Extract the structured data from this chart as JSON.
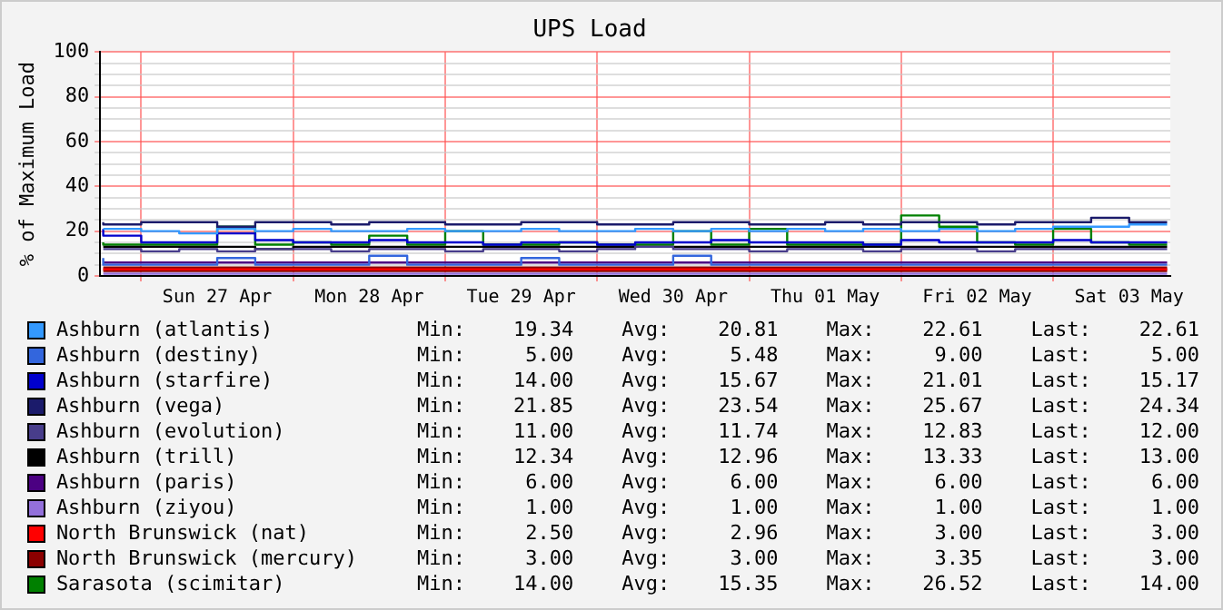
{
  "chart_data": {
    "type": "step",
    "title": "UPS Load",
    "ylabel": "% of Maximum Load",
    "x": [
      "--04-26T18:00",
      "--04-27T00:00",
      "--04-27T06:00",
      "--04-27T12:00",
      "--04-27T18:00",
      "--04-28T00:00",
      "--04-28T06:00",
      "--04-28T12:00",
      "--04-28T18:00",
      "--04-29T00:00",
      "--04-29T06:00",
      "--04-29T12:00",
      "--04-29T18:00",
      "--04-30T00:00",
      "--04-30T06:00",
      "--04-30T12:00",
      "--04-30T18:00",
      "--05-01T00:00",
      "--05-01T06:00",
      "--05-01T12:00",
      "--05-01T18:00",
      "--05-02T00:00",
      "--05-02T06:00",
      "--05-02T12:00",
      "--05-02T18:00",
      "--05-03T00:00",
      "--05-03T06:00",
      "--05-03T12:00",
      "--05-03T18:00"
    ],
    "xlim": [
      "--04-26T17:30",
      "--05-03T18:30"
    ],
    "xticks": [
      {
        "value": "--04-27T00:00",
        "label": null
      },
      {
        "value": "--04-27T12:00",
        "label": "Sun 27 Apr"
      },
      {
        "value": "--04-28T00:00",
        "label": null
      },
      {
        "value": "--04-28T12:00",
        "label": "Mon 28 Apr"
      },
      {
        "value": "--04-29T00:00",
        "label": null
      },
      {
        "value": "--04-29T12:00",
        "label": "Tue 29 Apr"
      },
      {
        "value": "--04-30T00:00",
        "label": null
      },
      {
        "value": "--04-30T12:00",
        "label": "Wed 30 Apr"
      },
      {
        "value": "--05-01T00:00",
        "label": null
      },
      {
        "value": "--05-01T12:00",
        "label": "Thu 01 May"
      },
      {
        "value": "--05-02T00:00",
        "label": null
      },
      {
        "value": "--05-02T12:00",
        "label": "Fri 02 May"
      },
      {
        "value": "--05-03T00:00",
        "label": null
      },
      {
        "value": "--05-03T12:00",
        "label": "Sat 03 May"
      }
    ],
    "ylim": [
      0,
      100
    ],
    "yticks": [
      0,
      {
        "value": 5,
        "label": null
      },
      {
        "value": 10,
        "label": null
      },
      {
        "value": 15,
        "label": null
      },
      20,
      {
        "value": 25,
        "label": null
      },
      {
        "value": 30,
        "label": null
      },
      {
        "value": 35,
        "label": null
      },
      40,
      {
        "value": 45,
        "label": null
      },
      {
        "value": 50,
        "label": null
      },
      {
        "value": 55,
        "label": null
      },
      60,
      {
        "value": 65,
        "label": null
      },
      {
        "value": 70,
        "label": null
      },
      {
        "value": 75,
        "label": null
      },
      80,
      {
        "value": 85,
        "label": null
      },
      {
        "value": 90,
        "label": null
      },
      {
        "value": 95,
        "label": null
      },
      100
    ],
    "grid": true,
    "legend": "bottom",
    "marker": "none",
    "series": [
      {
        "name": "Ashburn (atlantis)",
        "color": "#3399ff",
        "values": [
          21,
          21,
          20,
          19,
          21,
          20,
          21,
          20,
          20,
          21,
          20,
          20,
          21,
          20,
          20,
          21,
          20,
          21,
          20,
          21,
          20,
          21,
          20,
          21,
          20,
          21,
          22,
          22,
          23
        ]
      },
      {
        "name": "Ashburn (destiny)",
        "color": "#3366dd",
        "values": [
          8,
          5,
          5,
          5,
          8,
          5,
          5,
          5,
          9,
          5,
          5,
          5,
          8,
          5,
          5,
          5,
          9,
          5,
          5,
          5,
          5,
          5,
          5,
          5,
          5,
          5,
          5,
          5,
          5
        ]
      },
      {
        "name": "Ashburn (starfire)",
        "color": "#0000cc",
        "values": [
          21,
          18,
          15,
          15,
          19,
          16,
          15,
          15,
          16,
          15,
          15,
          14,
          15,
          15,
          14,
          15,
          15,
          16,
          15,
          15,
          15,
          14,
          16,
          15,
          15,
          15,
          16,
          15,
          15
        ]
      },
      {
        "name": "Ashburn (vega)",
        "color": "#1b1b6b",
        "values": [
          24,
          23,
          24,
          24,
          22,
          24,
          24,
          23,
          24,
          24,
          23,
          23,
          24,
          24,
          23,
          23,
          24,
          24,
          23,
          23,
          24,
          23,
          24,
          24,
          23,
          24,
          24,
          26,
          24
        ]
      },
      {
        "name": "Ashburn (evolution)",
        "color": "#483d8b",
        "values": [
          12,
          12,
          11,
          12,
          11,
          12,
          12,
          11,
          12,
          12,
          11,
          12,
          12,
          11,
          12,
          13,
          12,
          12,
          11,
          12,
          12,
          11,
          12,
          12,
          11,
          12,
          12,
          12,
          12
        ]
      },
      {
        "name": "Ashburn (trill)",
        "color": "#000000",
        "values": [
          13,
          13,
          13,
          13,
          13,
          12,
          13,
          13,
          13,
          13,
          13,
          13,
          13,
          13,
          13,
          13,
          13,
          13,
          13,
          13,
          13,
          13,
          13,
          13,
          13,
          13,
          13,
          13,
          13
        ]
      },
      {
        "name": "Ashburn (paris)",
        "color": "#4b0082",
        "values": [
          6,
          6,
          6,
          6,
          6,
          6,
          6,
          6,
          6,
          6,
          6,
          6,
          6,
          6,
          6,
          6,
          6,
          6,
          6,
          6,
          6,
          6,
          6,
          6,
          6,
          6,
          6,
          6,
          6
        ]
      },
      {
        "name": "Ashburn (ziyou)",
        "color": "#9370db",
        "values": [
          1,
          1,
          1,
          1,
          1,
          1,
          1,
          1,
          1,
          1,
          1,
          1,
          1,
          1,
          1,
          1,
          1,
          1,
          1,
          1,
          1,
          1,
          1,
          1,
          1,
          1,
          1,
          1,
          1
        ]
      },
      {
        "name": "North Brunswick (nat)",
        "color": "#ff0000",
        "values": [
          3,
          3,
          3,
          3,
          3,
          3,
          3,
          3,
          3,
          3,
          3,
          3,
          3,
          3,
          3,
          3,
          3,
          3,
          3,
          3,
          3,
          3,
          3,
          3,
          3,
          3,
          3,
          3,
          3
        ]
      },
      {
        "name": "North Brunswick (mercury)",
        "color": "#8b0000",
        "values": [
          3,
          3,
          3,
          3,
          3,
          3,
          3,
          3,
          3,
          3,
          3,
          3,
          3,
          3,
          3,
          3,
          3,
          3,
          3,
          3,
          3,
          3,
          3,
          3,
          3,
          3,
          3,
          3,
          3
        ]
      },
      {
        "name": "Sarasota (scimitar)",
        "color": "#008000",
        "values": [
          15,
          14,
          14,
          14,
          22,
          14,
          15,
          14,
          18,
          14,
          20,
          14,
          14,
          15,
          14,
          14,
          20,
          14,
          21,
          14,
          14,
          14,
          27,
          22,
          15,
          14,
          21,
          15,
          14
        ]
      }
    ],
    "annotations": [
      "Min:    19.34    Avg:    20.81    Max:    22.61    Last:    22.61",
      "Min:     5.00    Avg:     5.48    Max:     9.00    Last:     5.00",
      "Min:    14.00    Avg:    15.67    Max:    21.01    Last:    15.17",
      "Min:    21.85    Avg:    23.54    Max:    25.67    Last:    24.34",
      "Min:    11.00    Avg:    11.74    Max:    12.83    Last:    12.00",
      "Min:    12.34    Avg:    12.96    Max:    13.33    Last:    13.00",
      "Min:     6.00    Avg:     6.00    Max:     6.00    Last:     6.00",
      "Min:     1.00    Avg:     1.00    Max:     1.00    Last:     1.00",
      "Min:     2.50    Avg:     2.96    Max:     3.00    Last:     3.00",
      "Min:     3.00    Avg:     3.00    Max:     3.35    Last:     3.00",
      "Min:    14.00    Avg:    15.35    Max:    26.52    Last:    14.00"
    ]
  }
}
